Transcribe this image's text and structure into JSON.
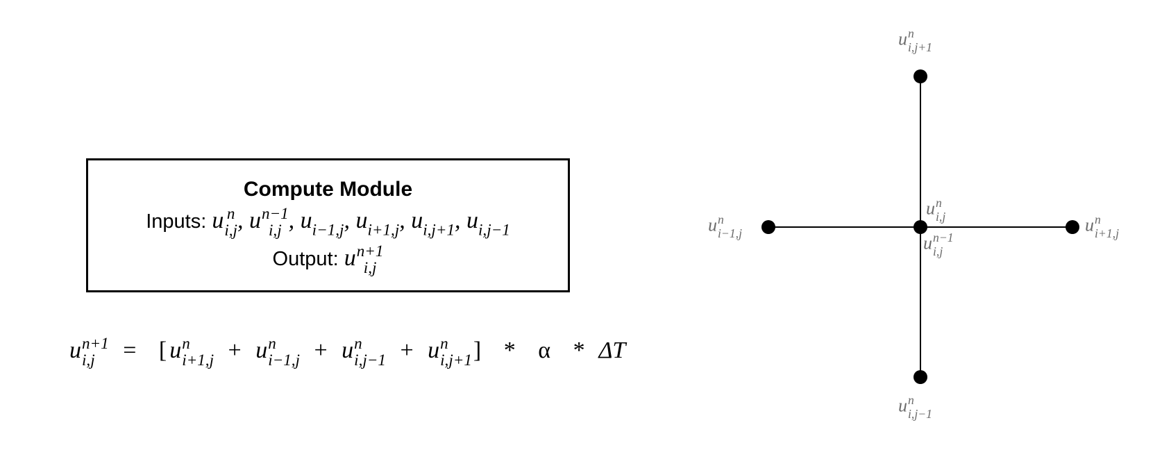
{
  "compute_module": {
    "title": "Compute Module",
    "inputs_label": "Inputs:",
    "output_label": "Output:"
  },
  "math": {
    "u": "u",
    "sup_n": "n",
    "sup_n_minus_1": "n−1",
    "sup_n_plus_1": "n+1",
    "sub_ij": "i,j",
    "sub_i_minus_1_j": "i−1,j",
    "sub_i_plus_1_j": "i+1,j",
    "sub_i_j_plus_1": "i,j+1",
    "sub_i_j_minus_1": "i,j−1",
    "comma": ",",
    "equals": "=",
    "plus": "+",
    "lbracket": "[",
    "rbracket": "]",
    "star": "*",
    "alpha": "α",
    "delta_t": "ΔT"
  },
  "colors": {
    "stroke": "#000000",
    "label": "#6b6b6b"
  }
}
